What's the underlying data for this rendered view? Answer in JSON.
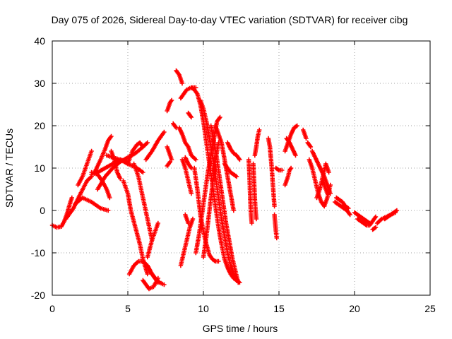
{
  "chart_data": {
    "type": "scatter",
    "title": "Day 075 of 2026, Sidereal Day-to-day VTEC variation (SDTVAR) for receiver cibg",
    "xlabel": "GPS time / hours",
    "ylabel": "SDTVAR / TECUs",
    "xlim": [
      0,
      25
    ],
    "ylim": [
      -20,
      40
    ],
    "xticks": [
      0,
      5,
      10,
      15,
      20,
      25
    ],
    "yticks": [
      -20,
      -10,
      0,
      10,
      20,
      30,
      40
    ],
    "grid": true,
    "marker": "plus",
    "color": "#ff0000",
    "segments": [
      {
        "x": [
          0.0,
          0.3,
          0.6,
          0.8,
          1.0,
          1.2,
          1.3
        ],
        "y": [
          -3.5,
          -4.0,
          -3.8,
          -2.5,
          -0.5,
          2.0,
          3.0
        ]
      },
      {
        "x": [
          0.9,
          1.4,
          1.8,
          2.3,
          2.6
        ],
        "y": [
          -2.0,
          0.5,
          3.5,
          7.0,
          8.0
        ]
      },
      {
        "x": [
          1.5,
          2.0,
          2.6,
          3.2,
          3.7
        ],
        "y": [
          1.5,
          3.0,
          2.0,
          0.5,
          0.0
        ]
      },
      {
        "x": [
          1.7,
          2.0,
          2.3,
          2.6
        ],
        "y": [
          6.0,
          8.0,
          11.0,
          14.0
        ]
      },
      {
        "x": [
          2.6,
          3.0,
          3.3,
          3.6,
          3.8
        ],
        "y": [
          9.0,
          8.5,
          7.0,
          5.0,
          3.0
        ]
      },
      {
        "x": [
          2.8,
          3.2,
          3.5,
          3.7,
          3.9
        ],
        "y": [
          9.0,
          12.0,
          14.5,
          16.5,
          17.5
        ]
      },
      {
        "x": [
          2.6,
          3.0,
          3.5,
          4.0,
          4.5,
          5.0
        ],
        "y": [
          8.5,
          9.0,
          10.0,
          11.0,
          12.0,
          11.5
        ]
      },
      {
        "x": [
          3.6,
          4.0,
          4.5,
          5.0,
          5.6,
          6.0
        ],
        "y": [
          13.0,
          12.5,
          12.0,
          11.0,
          10.0,
          9.0
        ]
      },
      {
        "x": [
          3.0,
          3.5,
          4.0,
          4.5,
          5.0,
          5.5,
          6.0,
          6.3
        ],
        "y": [
          5.0,
          8.0,
          10.0,
          11.5,
          12.5,
          13.5,
          15.0,
          16.0
        ]
      },
      {
        "x": [
          3.9,
          4.1,
          4.3,
          4.5
        ],
        "y": [
          14.0,
          12.0,
          9.0,
          7.5
        ]
      },
      {
        "x": [
          5.0,
          5.3,
          5.6,
          5.8,
          6.0
        ],
        "y": [
          11.0,
          14.0,
          15.5,
          16.0,
          15.0
        ]
      },
      {
        "x": [
          4.7,
          5.0,
          5.2,
          5.5,
          5.8,
          6.0,
          6.3
        ],
        "y": [
          7.0,
          4.0,
          0.0,
          -4.0,
          -8.0,
          -11.5,
          -15.0
        ]
      },
      {
        "x": [
          5.1,
          5.4,
          5.7,
          6.0,
          6.3,
          6.6,
          7.0
        ],
        "y": [
          -15.0,
          -13.0,
          -12.0,
          -12.0,
          -13.0,
          -15.0,
          -17.0
        ]
      },
      {
        "x": [
          5.4,
          5.7,
          6.0,
          6.3,
          6.6
        ],
        "y": [
          11.0,
          8.0,
          3.0,
          -2.0,
          -7.0
        ]
      },
      {
        "x": [
          6.0,
          6.2,
          6.4,
          6.7,
          7.0
        ],
        "y": [
          -16.5,
          -17.5,
          -18.5,
          -18.0,
          -16.0
        ]
      },
      {
        "x": [
          6.3,
          6.6,
          6.9,
          7.0
        ],
        "y": [
          -11.0,
          -7.0,
          -4.0,
          -3.0
        ]
      },
      {
        "x": [
          6.2,
          6.6,
          7.0,
          7.4
        ],
        "y": [
          12.0,
          14.0,
          16.5,
          18.5
        ]
      },
      {
        "x": [
          6.3,
          6.5,
          6.8,
          7.1,
          7.4
        ],
        "y": [
          -13.0,
          -14.5,
          -16.0,
          -17.0,
          -17.5
        ]
      },
      {
        "x": [
          7.6,
          7.7,
          7.8,
          7.9
        ],
        "y": [
          23.5,
          24.5,
          25.5,
          26.0
        ]
      },
      {
        "x": [
          7.6,
          7.7,
          7.8,
          7.9
        ],
        "y": [
          15.0,
          14.0,
          13.0,
          12.0
        ]
      },
      {
        "x": [
          7.6,
          7.7,
          7.8
        ],
        "y": [
          10.5,
          11.0,
          11.5
        ]
      },
      {
        "x": [
          8.0,
          8.1,
          8.2
        ],
        "y": [
          20.5,
          20.0,
          19.5
        ]
      },
      {
        "x": [
          8.2,
          8.3,
          8.4,
          8.5,
          8.6
        ],
        "y": [
          33.0,
          32.5,
          32.0,
          31.0,
          30.0
        ]
      },
      {
        "x": [
          8.5,
          8.7,
          8.9,
          9.2,
          9.5
        ],
        "y": [
          26.5,
          27.5,
          28.5,
          29.0,
          29.0
        ]
      },
      {
        "x": [
          8.4,
          8.6,
          8.8,
          9.0,
          9.2,
          9.5
        ],
        "y": [
          19.5,
          18.0,
          16.0,
          15.0,
          13.0,
          12.0
        ]
      },
      {
        "x": [
          8.6,
          8.8,
          9.0,
          9.2
        ],
        "y": [
          12.0,
          10.0,
          7.0,
          4.0
        ]
      },
      {
        "x": [
          8.5,
          8.7,
          8.9,
          9.1,
          9.3
        ],
        "y": [
          -13.0,
          -10.0,
          -7.0,
          -4.0,
          -2.0
        ]
      },
      {
        "x": [
          8.8,
          8.9,
          9.0
        ],
        "y": [
          -1.0,
          -2.0,
          -3.0
        ]
      },
      {
        "x": [
          8.8,
          9.0,
          9.2
        ],
        "y": [
          12.5,
          11.0,
          10.0
        ]
      },
      {
        "x": [
          9.0,
          9.1,
          9.2
        ],
        "y": [
          23.0,
          22.5,
          22.0
        ]
      },
      {
        "x": [
          9.2,
          9.4,
          9.6,
          9.8,
          10.0,
          10.2,
          10.4,
          10.6,
          10.8,
          11.0,
          11.2,
          11.4,
          11.6,
          11.8,
          12.0,
          12.2,
          12.4
        ],
        "y": [
          29.0,
          28.5,
          27.5,
          25.0,
          21.0,
          16.0,
          11.0,
          6.0,
          1.0,
          -4.0,
          -8.0,
          -11.5,
          -13.5,
          -15.0,
          -16.0,
          -16.5,
          -17.0
        ]
      },
      {
        "x": [
          9.4,
          9.6,
          9.8,
          10.0,
          10.2,
          10.4,
          10.6,
          10.8,
          11.0
        ],
        "y": [
          10.0,
          5.0,
          -1.0,
          -5.0,
          -8.0,
          -10.5,
          -11.5,
          -12.0,
          -12.0
        ]
      },
      {
        "x": [
          9.5,
          9.7,
          9.9,
          10.1,
          10.3,
          10.5,
          10.7,
          10.9,
          11.1
        ],
        "y": [
          -10.0,
          -6.0,
          -1.0,
          4.0,
          9.0,
          13.0,
          17.0,
          21.0,
          22.0
        ]
      },
      {
        "x": [
          9.8,
          10.0,
          10.2,
          10.4,
          10.6,
          10.8,
          11.0,
          11.2,
          11.4,
          11.6,
          11.8,
          12.0,
          12.2
        ],
        "y": [
          26.0,
          24.0,
          21.0,
          17.0,
          13.0,
          8.0,
          3.0,
          -2.0,
          -6.0,
          -10.0,
          -13.0,
          -15.0,
          -16.0
        ]
      },
      {
        "x": [
          10.0,
          10.2,
          10.4,
          10.6,
          10.8,
          11.0
        ],
        "y": [
          -11.0,
          -6.0,
          0.0,
          6.0,
          12.0,
          16.0
        ]
      },
      {
        "x": [
          10.5,
          10.7,
          10.9,
          11.1,
          11.3,
          11.5,
          11.7,
          11.9,
          12.1,
          12.3
        ],
        "y": [
          20.0,
          16.0,
          12.0,
          7.0,
          2.0,
          -3.0,
          -7.0,
          -11.0,
          -14.0,
          -17.0
        ]
      },
      {
        "x": [
          10.8,
          11.0,
          11.2,
          11.4,
          11.6,
          11.8,
          12.0
        ],
        "y": [
          20.0,
          18.0,
          16.0,
          12.0,
          8.0,
          4.0,
          0.0
        ]
      },
      {
        "x": [
          11.6,
          11.8,
          12.0,
          12.2,
          12.4
        ],
        "y": [
          16.0,
          14.5,
          13.5,
          13.0,
          12.0
        ]
      },
      {
        "x": [
          11.4,
          11.6,
          11.8,
          12.0,
          12.2
        ],
        "y": [
          11.0,
          10.0,
          9.0,
          8.5,
          8.0
        ]
      },
      {
        "x": [
          13.0,
          13.05,
          13.1,
          13.15,
          13.2
        ],
        "y": [
          12.0,
          8.0,
          3.0,
          -1.0,
          -3.0
        ]
      },
      {
        "x": [
          13.3,
          13.35,
          13.4,
          13.45,
          13.5
        ],
        "y": [
          11.0,
          7.0,
          3.0,
          0.0,
          -2.0
        ]
      },
      {
        "x": [
          13.4,
          13.5,
          13.6,
          13.7
        ],
        "y": [
          13.0,
          15.0,
          17.5,
          19.0
        ]
      },
      {
        "x": [
          14.3,
          14.4,
          14.5,
          14.6,
          14.7
        ],
        "y": [
          17.0,
          15.0,
          11.0,
          6.0,
          1.0
        ]
      },
      {
        "x": [
          14.7,
          14.75,
          14.8,
          14.85
        ],
        "y": [
          -1.0,
          -3.0,
          -5.0,
          -6.5
        ]
      },
      {
        "x": [
          14.8,
          15.0,
          15.2
        ],
        "y": [
          10.0,
          9.5,
          9.5
        ]
      },
      {
        "x": [
          15.4,
          15.5,
          15.6,
          15.7,
          15.8
        ],
        "y": [
          6.0,
          7.0,
          8.0,
          9.5,
          10.0
        ]
      },
      {
        "x": [
          15.4,
          15.6,
          15.8,
          16.0,
          16.2
        ],
        "y": [
          14.0,
          16.0,
          18.0,
          19.5,
          20.0
        ]
      },
      {
        "x": [
          15.5,
          15.7,
          15.9,
          16.1
        ],
        "y": [
          17.0,
          16.0,
          14.5,
          13.0
        ]
      },
      {
        "x": [
          16.6,
          16.7,
          16.8
        ],
        "y": [
          19.0,
          18.0,
          17.0
        ]
      },
      {
        "x": [
          16.9,
          17.0,
          17.1
        ],
        "y": [
          16.0,
          15.5,
          15.0
        ]
      },
      {
        "x": [
          17.0,
          17.2,
          17.4,
          17.6,
          17.8,
          18.0,
          18.2,
          18.4
        ],
        "y": [
          12.0,
          10.0,
          7.0,
          4.0,
          2.0,
          1.0,
          3.0,
          6.0
        ]
      },
      {
        "x": [
          17.2,
          17.4,
          17.6,
          17.8,
          18.0,
          18.2,
          18.4
        ],
        "y": [
          14.0,
          12.5,
          11.0,
          9.5,
          8.0,
          6.0,
          4.0
        ]
      },
      {
        "x": [
          17.5,
          17.7,
          17.9,
          18.1,
          18.3
        ],
        "y": [
          3.0,
          5.0,
          8.0,
          11.0,
          9.0
        ]
      },
      {
        "x": [
          17.9,
          18.0,
          18.1,
          18.2
        ],
        "y": [
          7.0,
          6.0,
          5.0,
          4.0
        ]
      },
      {
        "x": [
          18.7,
          18.9,
          19.1,
          19.3,
          19.5,
          19.7
        ],
        "y": [
          2.0,
          1.5,
          1.0,
          0.5,
          0.0,
          -1.0
        ]
      },
      {
        "x": [
          18.8,
          19.0,
          19.2,
          19.4,
          19.6
        ],
        "y": [
          3.0,
          2.5,
          2.0,
          1.0,
          0.5
        ]
      },
      {
        "x": [
          20.0,
          20.2,
          20.4,
          20.6,
          20.8,
          21.0
        ],
        "y": [
          -0.5,
          -1.0,
          -1.5,
          -2.0,
          -2.5,
          -3.0
        ]
      },
      {
        "x": [
          20.2,
          20.4,
          20.6,
          20.8,
          21.0,
          21.2,
          21.4
        ],
        "y": [
          -2.0,
          -2.5,
          -3.0,
          -3.5,
          -3.5,
          -2.5,
          -1.5
        ]
      },
      {
        "x": [
          21.2,
          21.4
        ],
        "y": [
          -4.5,
          -4.0
        ]
      },
      {
        "x": [
          21.5,
          21.8,
          22.1,
          22.4,
          22.7
        ],
        "y": [
          -3.0,
          -2.0,
          -1.5,
          -1.0,
          -0.5
        ]
      },
      {
        "x": [
          22.0,
          22.2,
          22.4,
          22.6,
          22.8
        ],
        "y": [
          -2.0,
          -1.5,
          -1.0,
          -0.5,
          0.0
        ]
      }
    ]
  }
}
